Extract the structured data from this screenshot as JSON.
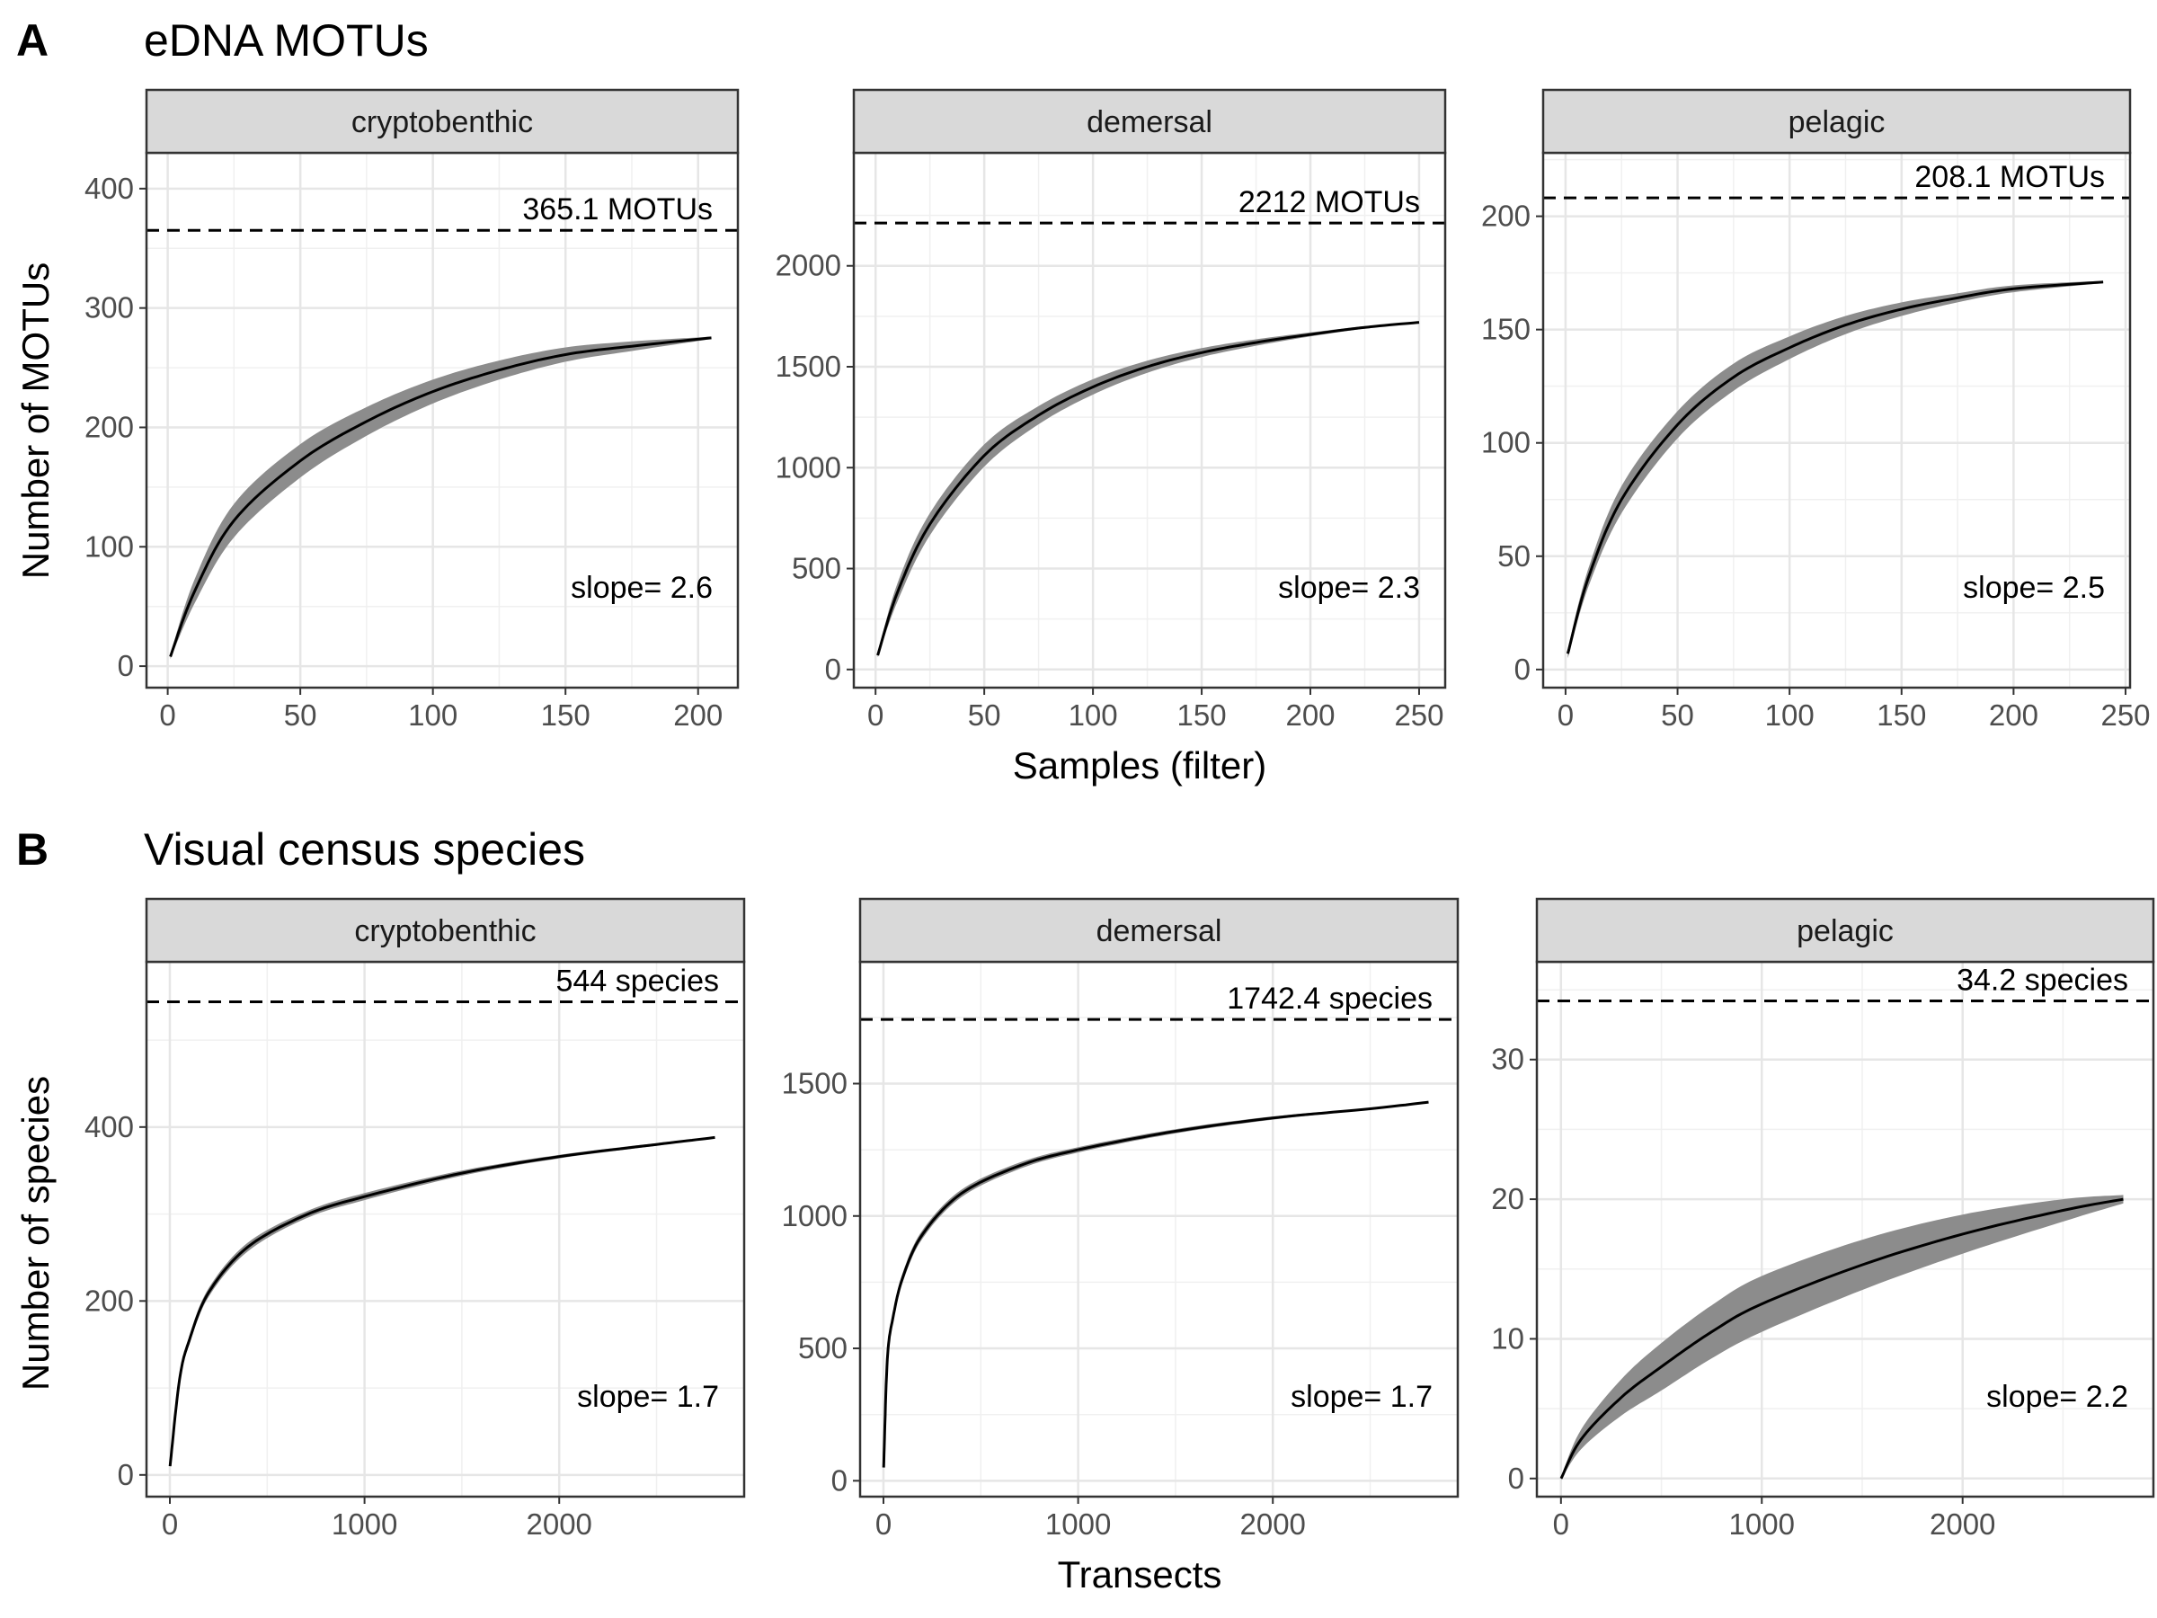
{
  "figure": {
    "sections": [
      {
        "letter": "A",
        "title": "eDNA MOTUs",
        "xlabel": "Samples (filter)",
        "ylabel": "Number of MOTUs"
      },
      {
        "letter": "B",
        "title": "Visual census species",
        "xlabel": "Transects",
        "ylabel": "Number of species"
      }
    ]
  },
  "chart_data": [
    {
      "type": "line",
      "section": "A",
      "facet": "cryptobenthic",
      "xlim": [
        -8,
        215
      ],
      "ylim": [
        -18,
        430
      ],
      "xticks": [
        0,
        50,
        100,
        150,
        200
      ],
      "yticks": [
        0,
        100,
        200,
        300,
        400
      ],
      "asymptote": 365.1,
      "asymptote_label": "365.1 MOTUs",
      "slope_label": "slope= 2.6",
      "curve": {
        "x": [
          1,
          10,
          25,
          50,
          75,
          100,
          125,
          150,
          175,
          205
        ],
        "y": [
          8,
          62,
          122,
          172,
          205,
          230,
          248,
          261,
          268,
          275
        ]
      },
      "band_halfwidth": [
        2,
        10,
        14,
        14,
        12,
        10,
        8,
        6,
        4,
        1
      ]
    },
    {
      "type": "line",
      "section": "A",
      "facet": "demersal",
      "xlim": [
        -10,
        262
      ],
      "ylim": [
        -90,
        2560
      ],
      "xticks": [
        0,
        50,
        100,
        150,
        200,
        250
      ],
      "yticks": [
        0,
        500,
        1000,
        1500,
        2000
      ],
      "asymptote": 2212,
      "asymptote_label": "2212 MOTUs",
      "slope_label": "slope= 2.3",
      "curve": {
        "x": [
          1,
          10,
          25,
          50,
          75,
          100,
          125,
          150,
          175,
          200,
          225,
          250
        ],
        "y": [
          70,
          380,
          720,
          1060,
          1260,
          1400,
          1500,
          1570,
          1620,
          1660,
          1695,
          1720
        ]
      },
      "band_halfwidth": [
        10,
        45,
        55,
        55,
        45,
        38,
        30,
        22,
        16,
        10,
        6,
        2
      ]
    },
    {
      "type": "line",
      "section": "A",
      "facet": "pelagic",
      "xlim": [
        -10,
        252
      ],
      "ylim": [
        -8,
        228
      ],
      "xticks": [
        0,
        50,
        100,
        150,
        200,
        250
      ],
      "yticks": [
        0,
        50,
        100,
        150,
        200
      ],
      "asymptote": 208.1,
      "asymptote_label": "208.1 MOTUs",
      "slope_label": "slope= 2.5",
      "curve": {
        "x": [
          1,
          10,
          25,
          50,
          75,
          100,
          125,
          150,
          175,
          200,
          240
        ],
        "y": [
          7,
          40,
          75,
          108,
          129,
          142,
          152,
          159,
          164,
          168,
          171
        ]
      },
      "band_halfwidth": [
        2,
        4,
        6,
        6,
        6,
        5,
        4,
        3,
        2,
        1.5,
        0.5
      ]
    },
    {
      "type": "line",
      "section": "B",
      "facet": "cryptobenthic",
      "xlim": [
        -120,
        2950
      ],
      "ylim": [
        -25,
        590
      ],
      "xticks": [
        0,
        1000,
        2000
      ],
      "yticks": [
        0,
        200,
        400
      ],
      "asymptote": 544,
      "asymptote_label": "544 species",
      "slope_label": "slope= 1.7",
      "curve": {
        "x": [
          1,
          50,
          100,
          200,
          400,
          700,
          1000,
          1500,
          2000,
          2500,
          2800
        ],
        "y": [
          10,
          110,
          155,
          210,
          262,
          299,
          320,
          347,
          366,
          380,
          388
        ]
      },
      "band_halfwidth": [
        1,
        4,
        5,
        5,
        5,
        4,
        4,
        3,
        2,
        1.5,
        0.5
      ]
    },
    {
      "type": "line",
      "section": "B",
      "facet": "demersal",
      "xlim": [
        -120,
        2950
      ],
      "ylim": [
        -60,
        1960
      ],
      "xticks": [
        0,
        1000,
        2000
      ],
      "yticks": [
        0,
        500,
        1000,
        1500
      ],
      "asymptote": 1742.4,
      "asymptote_label": "1742.4 species",
      "slope_label": "slope= 1.7",
      "curve": {
        "x": [
          1,
          20,
          50,
          100,
          200,
          400,
          700,
          1000,
          1500,
          2000,
          2500,
          2800
        ],
        "y": [
          50,
          460,
          620,
          770,
          930,
          1085,
          1190,
          1250,
          1320,
          1370,
          1405,
          1430
        ]
      },
      "band_halfwidth": [
        5,
        15,
        18,
        18,
        16,
        14,
        12,
        10,
        8,
        6,
        3,
        1
      ]
    },
    {
      "type": "line",
      "section": "B",
      "facet": "pelagic",
      "xlim": [
        -120,
        2950
      ],
      "ylim": [
        -1.3,
        37
      ],
      "xticks": [
        0,
        1000,
        2000
      ],
      "yticks": [
        0,
        10,
        20,
        30
      ],
      "asymptote": 34.2,
      "asymptote_label": "34.2 species",
      "slope_label": "slope= 2.2",
      "curve": {
        "x": [
          1,
          100,
          300,
          500,
          750,
          1000,
          1500,
          2000,
          2500,
          2800
        ],
        "y": [
          0,
          2.8,
          5.8,
          8,
          10.5,
          12.5,
          15.3,
          17.5,
          19.2,
          20
        ]
      },
      "band_halfwidth": [
        0.1,
        0.7,
        1.3,
        1.7,
        1.9,
        2,
        1.8,
        1.4,
        0.8,
        0.3
      ]
    }
  ]
}
